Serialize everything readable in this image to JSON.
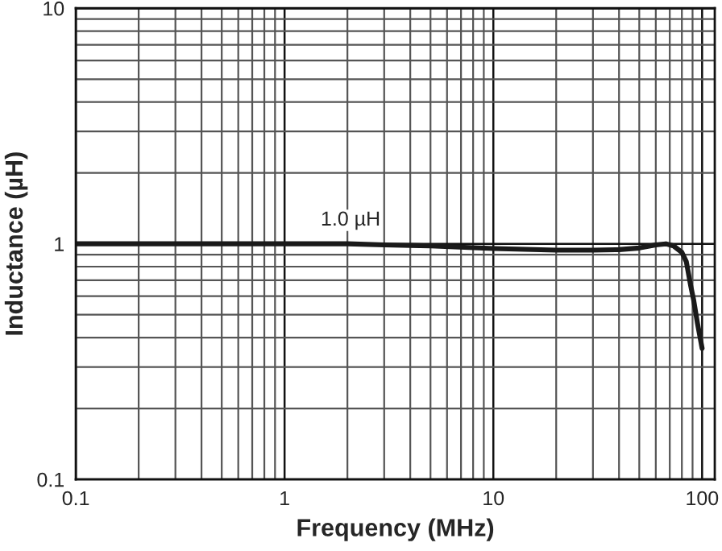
{
  "chart_data": {
    "type": "line",
    "xlabel": "Frequency (MHz)",
    "ylabel": "Inductance (µH)",
    "log": "xy",
    "xlim": [
      0.1,
      115
    ],
    "ylim": [
      0.1,
      10
    ],
    "xticks": [
      0.1,
      1,
      10,
      100
    ],
    "yticks": [
      0.1,
      1,
      10
    ],
    "grid": true,
    "marker": "none",
    "line_style": "solid",
    "annotations": [
      "1.0 µH"
    ],
    "x": [
      0.1,
      0.3,
      1,
      2,
      3,
      5,
      10,
      20,
      30,
      40,
      50,
      60,
      67,
      73,
      80,
      84,
      88,
      91,
      95,
      100
    ],
    "series": [
      {
        "color": "#1a1a1a",
        "values": [
          1.0,
          1.0,
          1.0,
          1.0,
          0.99,
          0.98,
          0.955,
          0.94,
          0.94,
          0.945,
          0.96,
          0.99,
          1.0,
          0.98,
          0.92,
          0.84,
          0.67,
          0.58,
          0.46,
          0.36
        ]
      }
    ]
  }
}
